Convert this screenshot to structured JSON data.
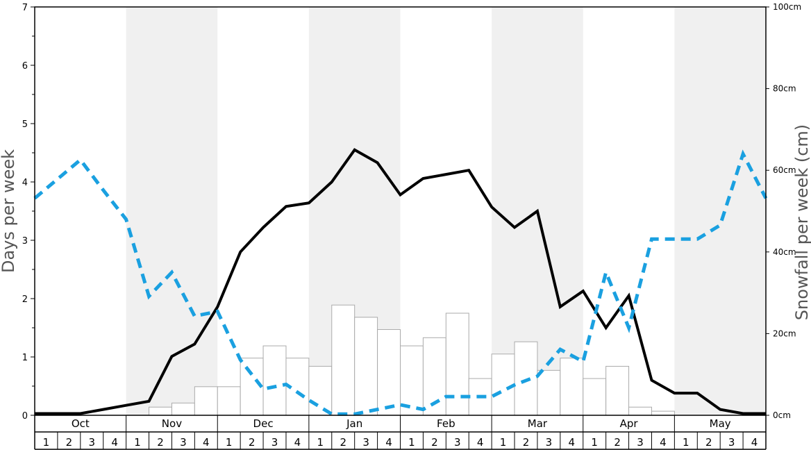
{
  "chart_data": {
    "type": "bar+line",
    "title": "",
    "ylabel_left": "Days per week",
    "ylabel_right": "Snowfall per week (cm)",
    "ylim_left": [
      0,
      7
    ],
    "ylim_right": [
      0,
      100
    ],
    "left_ticks": [
      "0",
      "1",
      "2",
      "3",
      "4",
      "5",
      "6",
      "7"
    ],
    "right_ticks": [
      "0cm",
      "20cm",
      "40cm",
      "60cm",
      "80cm",
      "100cm"
    ],
    "months": [
      "Oct",
      "Nov",
      "Dec",
      "Jan",
      "Feb",
      "Mar",
      "Apr",
      "May"
    ],
    "weeks": [
      "1",
      "2",
      "3",
      "4"
    ],
    "month_shading": [
      false,
      true,
      false,
      true,
      false,
      true,
      false,
      true
    ],
    "colors": {
      "snow_days_line": "#000000",
      "dashed_line": "#1aa0e0",
      "bars_fill": "#ffffff",
      "bars_stroke": "#aaaaaa",
      "shaded_month": "#f0f0f0"
    },
    "series": [
      {
        "kind": "bar",
        "axis": "right",
        "values": [
          0,
          0,
          0,
          0,
          0,
          2,
          3,
          7,
          7,
          14,
          17,
          14,
          12,
          27,
          24,
          21,
          17,
          19,
          25,
          9,
          15,
          18,
          11,
          14,
          9,
          12,
          2,
          1,
          0,
          0,
          0,
          0
        ]
      },
      {
        "kind": "line",
        "axis": "left",
        "style": "solid",
        "values": [
          0.03,
          0.03,
          0.03,
          0.1,
          0.17,
          0.24,
          1.01,
          1.22,
          1.86,
          2.8,
          3.22,
          3.58,
          3.64,
          4.0,
          4.55,
          4.33,
          3.78,
          4.06,
          4.13,
          4.2,
          3.57,
          3.22,
          3.5,
          1.86,
          2.13,
          1.5,
          2.05,
          0.6,
          0.38,
          0.38,
          0.1,
          0.03,
          0.03
        ]
      },
      {
        "kind": "line",
        "axis": "left",
        "style": "dashed",
        "values": [
          3.72,
          4.05,
          4.38,
          3.86,
          3.36,
          2.04,
          2.45,
          1.7,
          1.78,
          0.95,
          0.45,
          0.53,
          0.26,
          0.02,
          0.02,
          0.1,
          0.18,
          0.1,
          0.32,
          0.32,
          0.32,
          0.52,
          0.67,
          1.13,
          0.92,
          2.45,
          1.5,
          3.02,
          3.02,
          3.02,
          3.26,
          4.48,
          3.72
        ]
      }
    ]
  }
}
